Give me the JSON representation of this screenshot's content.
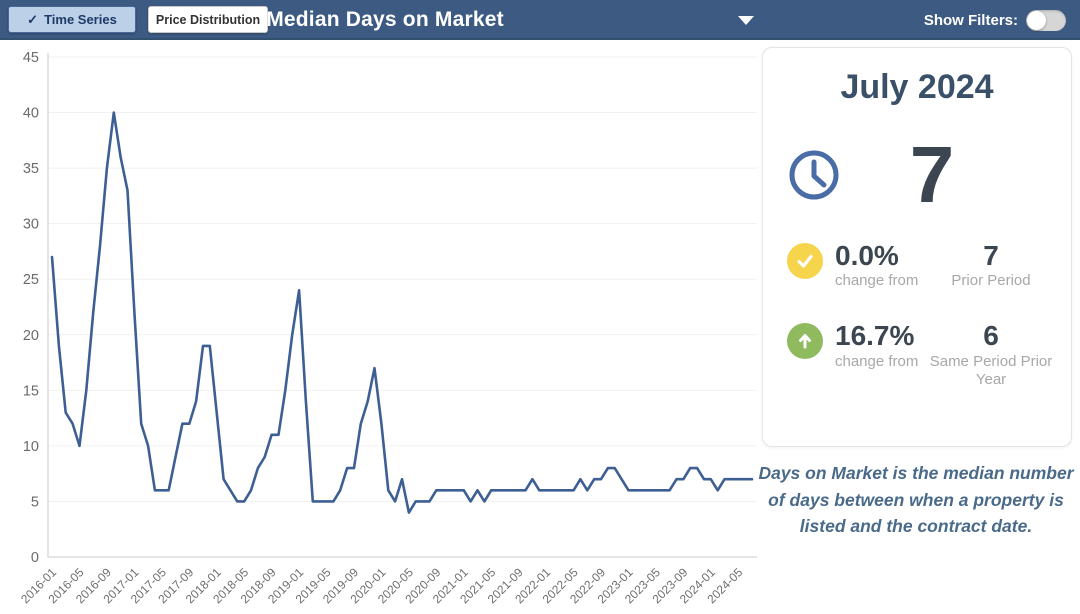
{
  "topbar": {
    "time_series_label": "Time Series",
    "time_series_check": "✓",
    "price_distribution_label": "Price Distribution",
    "title": "Median Days on Market",
    "show_filters_label": "Show Filters:",
    "toggle_state": "off"
  },
  "chart_data": {
    "type": "line",
    "title": "Median Days on Market",
    "xlabel": "",
    "ylabel": "",
    "ylim": [
      0,
      45
    ],
    "y_ticks": [
      0,
      5,
      10,
      15,
      20,
      25,
      30,
      35,
      40,
      45
    ],
    "grid": "horizontal-faint",
    "legend": "none",
    "line_color": "#3e5f94",
    "x_start": "2016-01",
    "x_end": "2024-07",
    "x_tick_interval_months": 4,
    "x_tick_labels": [
      "2016-01",
      "2016-05",
      "2016-09",
      "2017-01",
      "2017-05",
      "2017-09",
      "2018-01",
      "2018-05",
      "2018-09",
      "2019-01",
      "2019-05",
      "2019-09",
      "2020-01",
      "2020-05",
      "2020-09",
      "2021-01",
      "2021-05",
      "2021-09",
      "2022-01",
      "2022-05",
      "2022-09",
      "2023-01",
      "2023-05",
      "2023-09",
      "2024-01",
      "2024-05"
    ],
    "series": [
      {
        "name": "Median Days on Market",
        "values": [
          27,
          19,
          13,
          12,
          10,
          15,
          22,
          28,
          35,
          40,
          36,
          33,
          22,
          12,
          10,
          6,
          6,
          6,
          9,
          12,
          12,
          14,
          19,
          19,
          13,
          7,
          6,
          5,
          5,
          6,
          8,
          9,
          11,
          11,
          15,
          20,
          24,
          14,
          5,
          5,
          5,
          5,
          6,
          8,
          8,
          12,
          14,
          17,
          12,
          6,
          5,
          7,
          4,
          5,
          5,
          5,
          6,
          6,
          6,
          6,
          6,
          5,
          6,
          5,
          6,
          6,
          6,
          6,
          6,
          6,
          7,
          6,
          6,
          6,
          6,
          6,
          6,
          7,
          6,
          7,
          7,
          8,
          8,
          7,
          6,
          6,
          6,
          6,
          6,
          6,
          6,
          7,
          7,
          8,
          8,
          7,
          7,
          6,
          7,
          7,
          7,
          7,
          7
        ]
      }
    ]
  },
  "summary_card": {
    "period_title": "July 2024",
    "current_value": "7",
    "rows": [
      {
        "icon": "check",
        "icon_color": "#f6d44c",
        "pct": "0.0%",
        "caption": "change from",
        "value": "7",
        "value_caption": "Prior Period"
      },
      {
        "icon": "up-arrow",
        "icon_color": "#8fba5e",
        "pct": "16.7%",
        "caption": "change from",
        "value": "6",
        "value_caption": "Same Period Prior Year"
      }
    ]
  },
  "description": "Days on Market is the median number of days between when a property is listed and the contract date."
}
